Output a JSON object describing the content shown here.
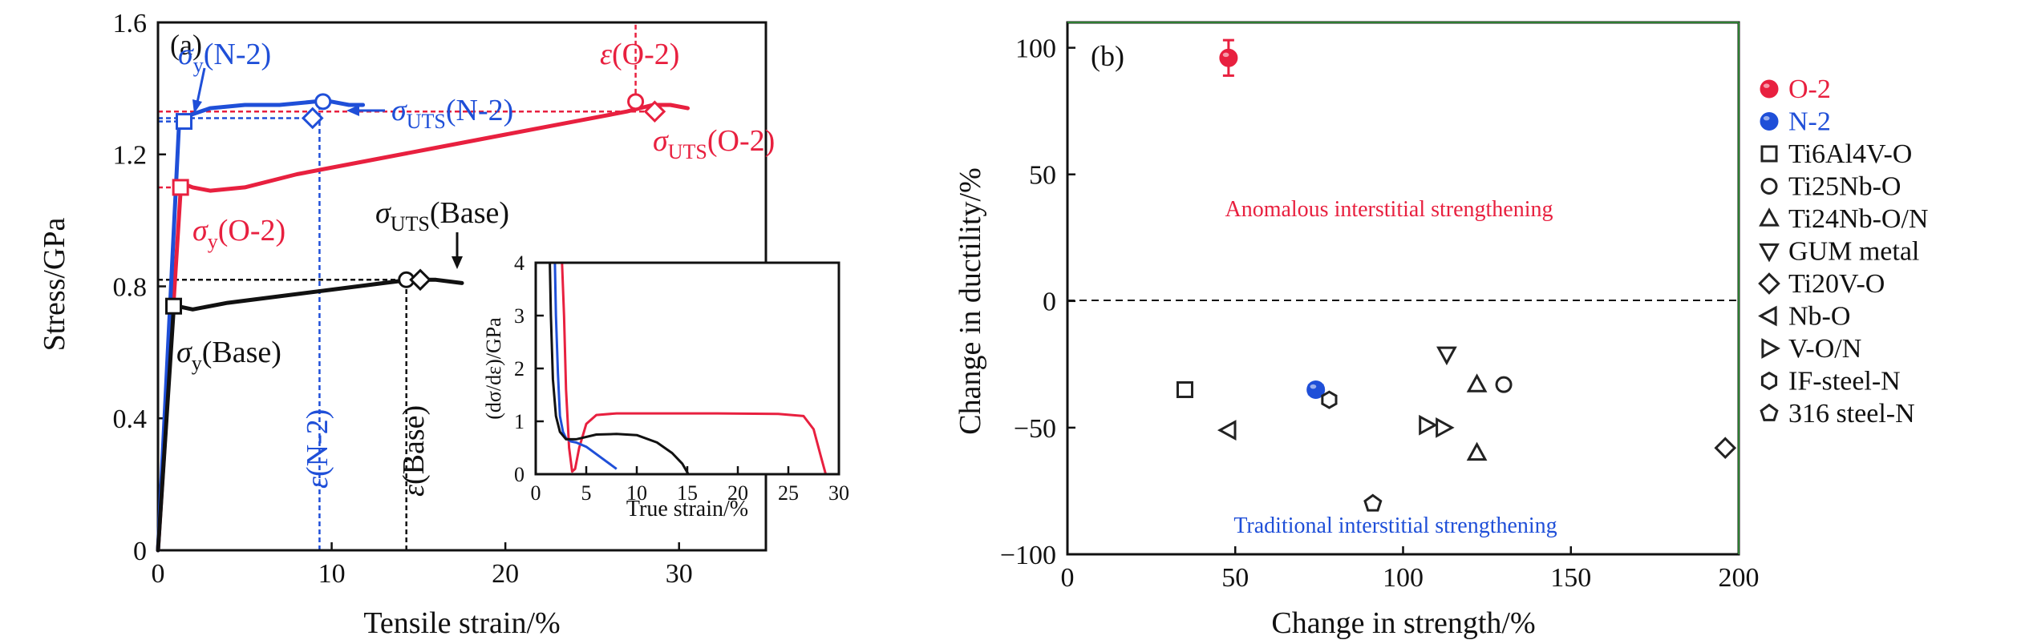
{
  "chart_data": [
    {
      "type": "line",
      "panel_label": "(a)",
      "xlabel": "Tensile strain/%",
      "ylabel": "Stress/GPa",
      "xlim": [
        0,
        35
      ],
      "ylim": [
        0,
        1.6
      ],
      "xticks": [
        "0",
        "10",
        "20",
        "30"
      ],
      "yticks": [
        "0",
        "0.4",
        "0.8",
        "1.2",
        "1.6"
      ],
      "series": [
        {
          "color": "#e8203f",
          "x": [
            0,
            1.3,
            1.5,
            2,
            3,
            5,
            8,
            12,
            16,
            20,
            24,
            27,
            28.5,
            29.5,
            30.5
          ],
          "y": [
            0,
            1.09,
            1.11,
            1.1,
            1.09,
            1.1,
            1.14,
            1.18,
            1.22,
            1.26,
            1.3,
            1.33,
            1.35,
            1.35,
            1.34
          ]
        },
        {
          "color": "#1f4fd8",
          "x": [
            0,
            1.2,
            1.5,
            1.9,
            3,
            5,
            7,
            9,
            10,
            11,
            11.8
          ],
          "y": [
            0,
            1.28,
            1.3,
            1.32,
            1.34,
            1.35,
            1.35,
            1.36,
            1.36,
            1.35,
            1.35
          ]
        },
        {
          "color": "#111111",
          "x": [
            0,
            0.9,
            1.1,
            2,
            4,
            7,
            10,
            13,
            14.5,
            16,
            17.5
          ],
          "y": [
            0,
            0.73,
            0.74,
            0.73,
            0.75,
            0.77,
            0.79,
            0.81,
            0.82,
            0.82,
            0.81
          ]
        }
      ],
      "markers": [
        {
          "shape": "square",
          "color": "#1f4fd8",
          "x": 1.5,
          "y": 1.3
        },
        {
          "shape": "circle",
          "color": "#1f4fd8",
          "x": 9.5,
          "y": 1.36
        },
        {
          "shape": "diamond",
          "color": "#1f4fd8",
          "x": 8.9,
          "y": 1.31
        },
        {
          "shape": "square",
          "color": "#e8203f",
          "x": 1.3,
          "y": 1.1
        },
        {
          "shape": "circle",
          "color": "#e8203f",
          "x": 27.5,
          "y": 1.36
        },
        {
          "shape": "diamond",
          "color": "#e8203f",
          "x": 28.6,
          "y": 1.33
        },
        {
          "shape": "square",
          "color": "#111111",
          "x": 0.9,
          "y": 0.74
        },
        {
          "shape": "circle",
          "color": "#111111",
          "x": 14.3,
          "y": 0.82
        },
        {
          "shape": "diamond",
          "color": "#111111",
          "x": 15.1,
          "y": 0.82
        }
      ],
      "reference_lines": [
        {
          "color": "#1f4fd8",
          "orientation": "h",
          "value": 1.3,
          "from": 0,
          "to": 1.5
        },
        {
          "color": "#1f4fd8",
          "orientation": "h",
          "value": 1.31,
          "from": 0,
          "to": 8.9
        },
        {
          "color": "#1f4fd8",
          "orientation": "v",
          "value": 9.3,
          "from": 0,
          "to": 1.36
        },
        {
          "color": "#e8203f",
          "orientation": "h",
          "value": 1.33,
          "from": 0,
          "to": 28.6
        },
        {
          "color": "#e8203f",
          "orientation": "h",
          "value": 1.1,
          "from": 0,
          "to": 1.3
        },
        {
          "color": "#e8203f",
          "orientation": "v",
          "value": 27.5,
          "from": 1.36,
          "to": 1.6
        },
        {
          "color": "#111111",
          "orientation": "h",
          "value": 0.82,
          "from": 0,
          "to": 14.3
        },
        {
          "color": "#111111",
          "orientation": "v",
          "value": 14.3,
          "from": 0,
          "to": 0.82
        }
      ],
      "annotations": {
        "sy_n2": "(N-2)",
        "suts_n2": "(N-2)",
        "eps_o2": "(O-2)",
        "suts_o2": "(O-2)",
        "sy_o2": "(O-2)",
        "suts_base": "(Base)",
        "sy_base": "(Base)",
        "eps_n2": "(N-2)",
        "eps_base": "(Base)",
        "sigma_symbol": "σ",
        "epsilon_symbol": "ε",
        "y_sub": "y",
        "uts_sub": "UTS"
      },
      "inset": {
        "type": "line",
        "xlabel": "True strain/%",
        "ylabel": "(dσ/dε)/GPa",
        "xlim": [
          0,
          30
        ],
        "ylim": [
          0,
          4
        ],
        "xticks": [
          "0",
          "5",
          "10",
          "15",
          "20",
          "25",
          "30"
        ],
        "yticks": [
          "0",
          "1",
          "2",
          "3",
          "4"
        ],
        "series": [
          {
            "color": "#e8203f",
            "x": [
              2.6,
              2.8,
              3.0,
              3.3,
              3.6,
              3.9,
              4.3,
              5.0,
              6.0,
              8,
              12,
              18,
              24,
              26.5,
              27.5,
              28.2,
              28.7
            ],
            "y": [
              4,
              3.0,
              1.6,
              0.5,
              0.05,
              0.1,
              0.5,
              0.95,
              1.12,
              1.15,
              1.15,
              1.15,
              1.14,
              1.1,
              0.85,
              0.35,
              0
            ]
          },
          {
            "color": "#1f4fd8",
            "x": [
              1.9,
              2.0,
              2.2,
              2.4,
              2.7,
              3.0,
              3.5,
              4,
              5,
              6,
              7,
              8
            ],
            "y": [
              4,
              3.0,
              1.9,
              1.1,
              0.8,
              0.68,
              0.62,
              0.6,
              0.52,
              0.38,
              0.24,
              0.1
            ]
          },
          {
            "color": "#111111",
            "x": [
              1.4,
              1.5,
              1.7,
              2.0,
              2.4,
              3.0,
              4,
              6,
              8,
              10,
              12,
              13.5,
              14.5,
              15.1
            ],
            "y": [
              4,
              3.0,
              1.8,
              1.1,
              0.8,
              0.66,
              0.66,
              0.75,
              0.76,
              0.74,
              0.6,
              0.4,
              0.2,
              0
            ]
          }
        ]
      }
    },
    {
      "type": "scatter",
      "panel_label": "(b)",
      "xlabel": "Change in strength/%",
      "ylabel": "Change in ductility/%",
      "xlim": [
        0,
        200
      ],
      "ylim": [
        -100,
        110
      ],
      "xticks": [
        "0",
        "50",
        "100",
        "150",
        "200"
      ],
      "yticks": [
        "100",
        "50",
        "0",
        "−50",
        "−100"
      ],
      "annotations": {
        "anomalous": "Anomalous interstitial strengthening",
        "traditional": "Traditional interstitial strengthening"
      },
      "legend_position": "right-outside",
      "series": [
        {
          "name": "O-2",
          "marker": "filled-circle",
          "color": "#e8203f",
          "points": [
            {
              "x": 48,
              "y": 96,
              "yerr": 7
            }
          ]
        },
        {
          "name": "N-2",
          "marker": "filled-circle",
          "color": "#1f4fd8",
          "points": [
            {
              "x": 74,
              "y": -35,
              "xerr": 2
            }
          ]
        },
        {
          "name": "Ti6Al4V-O",
          "marker": "square",
          "color": "#222222",
          "points": [
            {
              "x": 35,
              "y": -35
            }
          ]
        },
        {
          "name": "Ti25Nb-O",
          "marker": "circle",
          "color": "#222222",
          "points": [
            {
              "x": 130,
              "y": -33
            }
          ]
        },
        {
          "name": "Ti24Nb-O/N",
          "marker": "triangle-up",
          "color": "#222222",
          "points": [
            {
              "x": 122,
              "y": -33
            },
            {
              "x": 122,
              "y": -60
            }
          ]
        },
        {
          "name": "GUM metal",
          "marker": "triangle-down",
          "color": "#222222",
          "points": [
            {
              "x": 113,
              "y": -21
            }
          ]
        },
        {
          "name": "Ti20V-O",
          "marker": "diamond",
          "color": "#222222",
          "points": [
            {
              "x": 196,
              "y": -58
            }
          ]
        },
        {
          "name": "Nb-O",
          "marker": "triangle-left",
          "color": "#222222",
          "points": [
            {
              "x": 48,
              "y": -51
            }
          ]
        },
        {
          "name": "V-O/N",
          "marker": "triangle-right",
          "color": "#222222",
          "points": [
            {
              "x": 107,
              "y": -49
            },
            {
              "x": 112,
              "y": -50
            }
          ]
        },
        {
          "name": "IF-steel-N",
          "marker": "hexagon",
          "color": "#222222",
          "points": [
            {
              "x": 78,
              "y": -39
            }
          ]
        },
        {
          "name": "316 steel-N",
          "marker": "pentagon",
          "color": "#222222",
          "points": [
            {
              "x": 91,
              "y": -80
            }
          ]
        }
      ]
    }
  ]
}
